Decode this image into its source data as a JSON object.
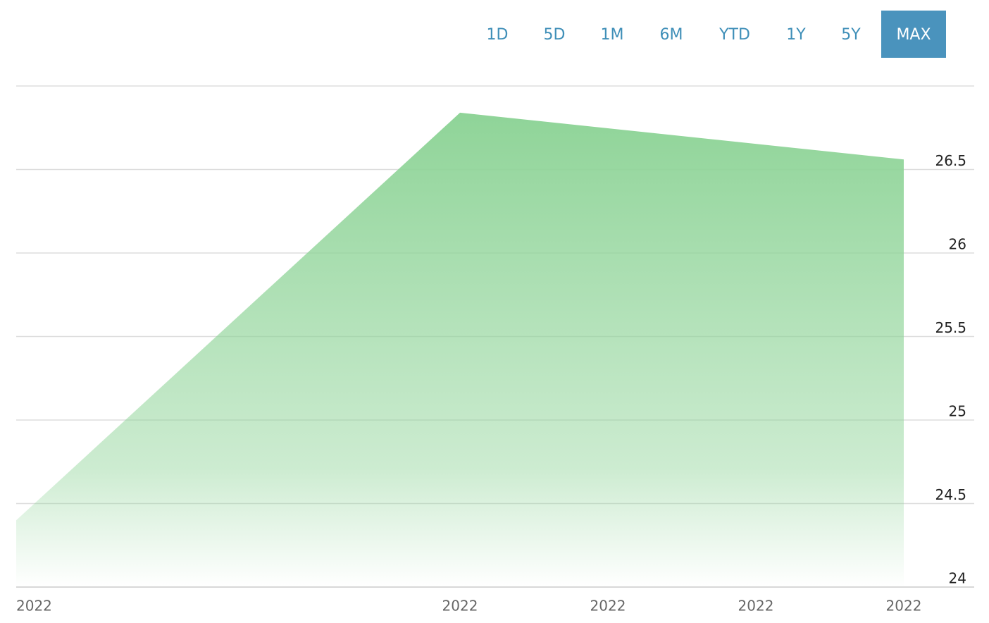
{
  "range_buttons": [
    "1D",
    "5D",
    "1M",
    "6M",
    "YTD",
    "1Y",
    "5Y",
    "MAX"
  ],
  "selected_button": 7,
  "chart_data": {
    "type": "area",
    "x": [
      0,
      3,
      6
    ],
    "values": [
      24.4,
      26.84,
      26.56
    ],
    "color": "#8fd498",
    "xlim": [
      0,
      6
    ],
    "xticks": [
      {
        "value": 0,
        "label": "2022"
      },
      {
        "value": 3,
        "label": "2022"
      },
      {
        "value": 4,
        "label": "2022"
      },
      {
        "value": 5,
        "label": "2022"
      },
      {
        "value": 6,
        "label": "2022"
      }
    ],
    "ylim": [
      24,
      27
    ],
    "yticks": [
      24,
      24.5,
      25,
      25.5,
      26,
      26.5
    ],
    "grid": true
  }
}
